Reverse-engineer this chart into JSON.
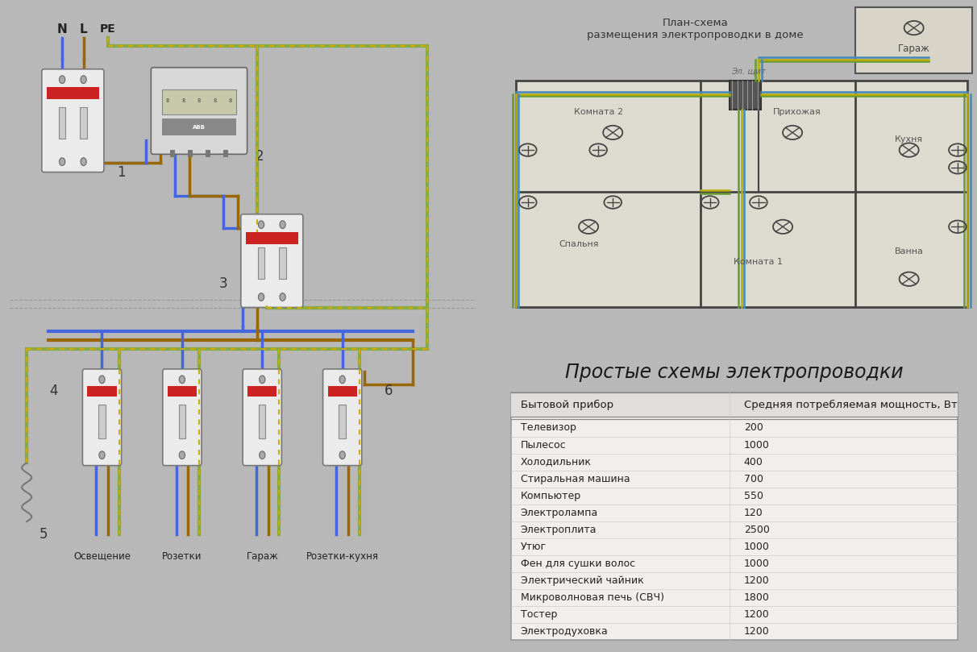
{
  "bg_color": "#b8b8b8",
  "left_bg": "#e8e8e8",
  "right_top_bg": "#d8d8d0",
  "right_bottom_bg": "#bbbbbb",
  "table_bg": "#f0f0f0",
  "title_text": "Простые схемы электропроводки",
  "plan_title": "План-схема\nразмещения электропроводки в доме",
  "el_shchit": "Эл. щит",
  "garage_label": "Гараж",
  "rooms": [
    "Комната 2",
    "Прихожая",
    "Кухня",
    "Спальня",
    "Комната 1",
    "Ванна"
  ],
  "table_header": [
    "Бытовой прибор",
    "Средняя потребляемая мощность, Вт"
  ],
  "table_data": [
    [
      "Телевизор",
      "200"
    ],
    [
      "Пылесос",
      "1000"
    ],
    [
      "Холодильник",
      "400"
    ],
    [
      "Стиральная машина",
      "700"
    ],
    [
      "Компьютер",
      "550"
    ],
    [
      "Электролампа",
      "120"
    ],
    [
      "Электроплита",
      "2500"
    ],
    [
      "Утюг",
      "1000"
    ],
    [
      "Фен для сушки волос",
      "1000"
    ],
    [
      "Электрический чайник",
      "1200"
    ],
    [
      "Микроволновая печь (СВЧ)",
      "1800"
    ],
    [
      "Тостер",
      "1200"
    ],
    [
      "Электродуховка",
      "1200"
    ]
  ],
  "breaker_labels": [
    "Освещение",
    "Розетки",
    "Гараж",
    "Розетки-кухня"
  ],
  "wire_blue": "#4466dd",
  "wire_brown": "#996600",
  "wire_gy1": "#88aa44",
  "wire_gy2": "#ccaa00",
  "line_width": 2.5,
  "plan_wire_green": "#669933",
  "plan_wire_yellow": "#bbaa00",
  "plan_wire_blue": "#4488bb",
  "plan_wire_dark": "#336644"
}
